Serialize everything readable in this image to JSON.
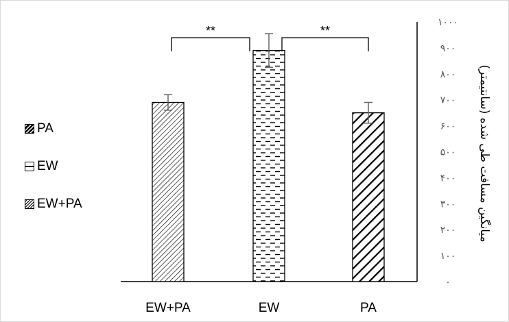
{
  "chart_data": {
    "type": "bar",
    "categories": [
      "EW+PA",
      "EW",
      "PA"
    ],
    "values": [
      690,
      890,
      650
    ],
    "errors": [
      30,
      65,
      40
    ],
    "ylim": [
      0,
      1000
    ],
    "y_ticks": [
      "٠",
      "١٠٠",
      "٢٠٠",
      "٣٠٠",
      "۴٠٠",
      "۵٠٠",
      "۶٠٠",
      "٧٠٠",
      "٨٠٠",
      "٩٠٠",
      "١٠٠٠"
    ],
    "ylabel": "میانگین مسافت طی شده (سانتیمتر)",
    "y_axis_side": "right",
    "legend": [
      "PA",
      "EW",
      "EW+PA"
    ],
    "legend_placement": "left",
    "significance": [
      {
        "between": [
          "EW+PA",
          "EW"
        ],
        "label": "**"
      },
      {
        "between": [
          "EW",
          "PA"
        ],
        "label": "**"
      }
    ],
    "patterns": {
      "EW+PA": "fine-diagonal",
      "EW": "dashes",
      "PA": "wide-diagonal"
    },
    "grid": false
  }
}
